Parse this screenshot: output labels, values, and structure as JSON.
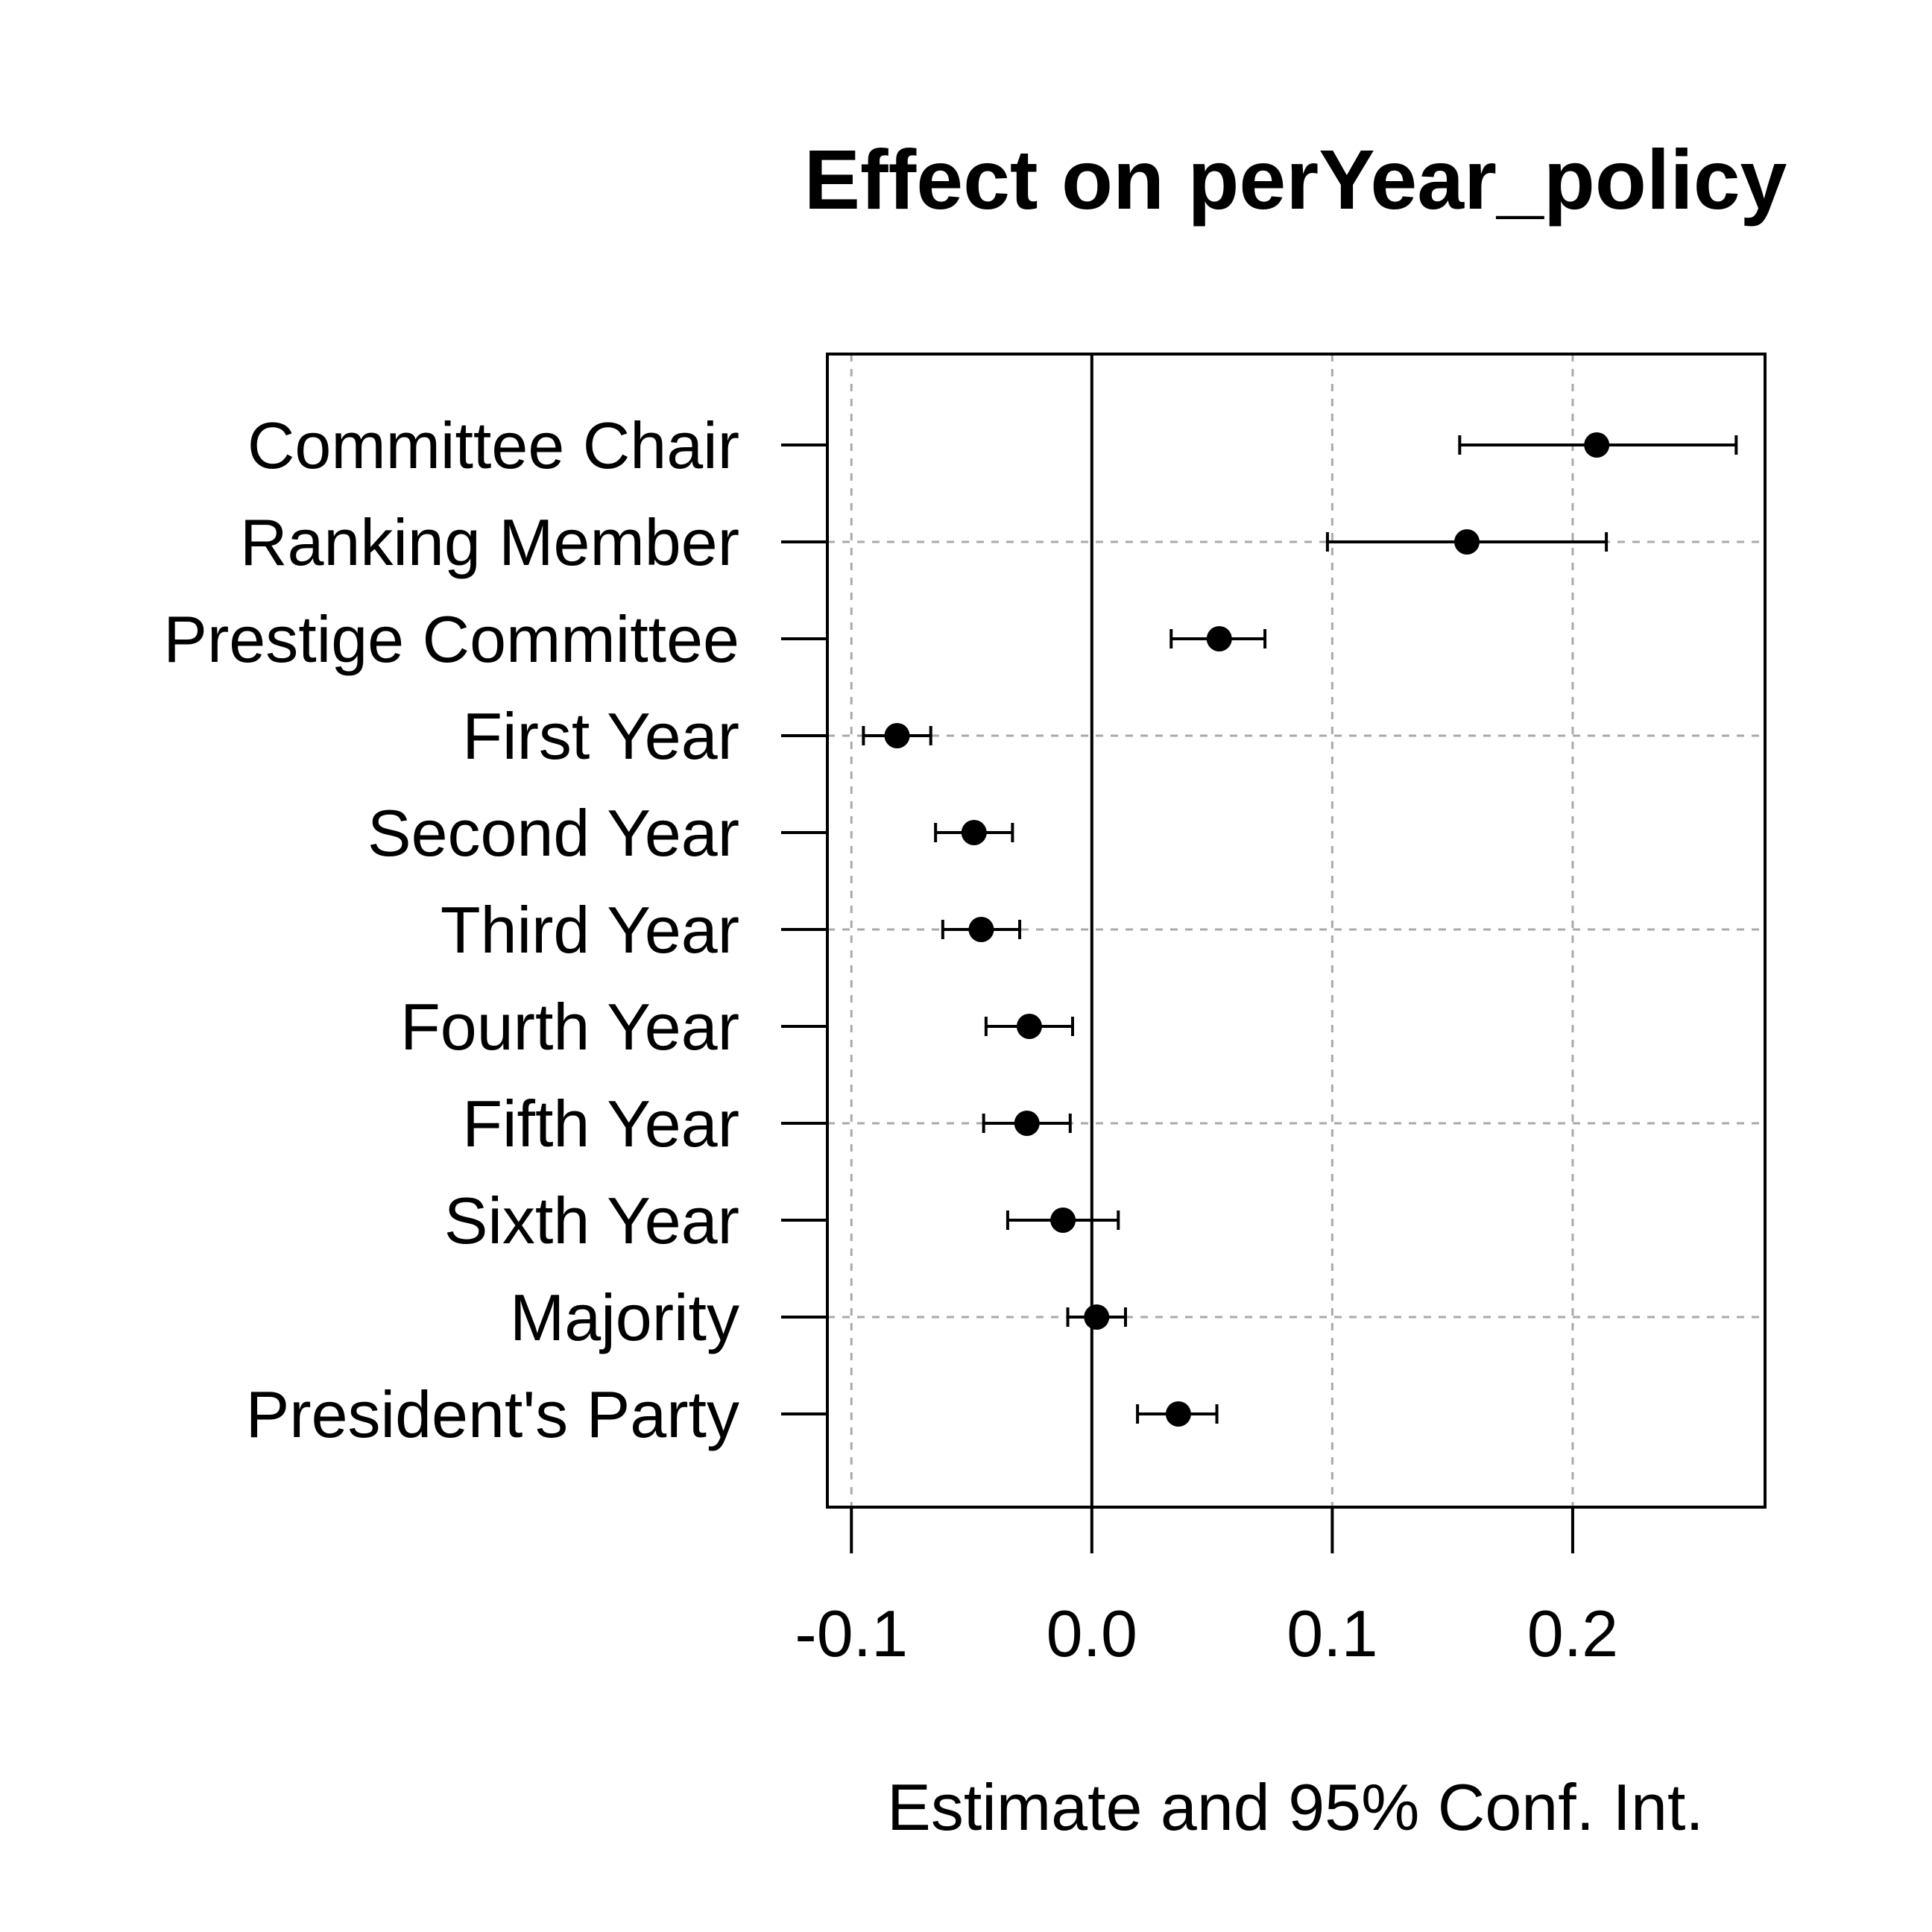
{
  "chart_data": {
    "type": "scatter",
    "subtype": "coefficient-plot",
    "title": "Effect on perYear_policy",
    "xlabel": "Estimate and 95% Conf. Int.",
    "ylabel": "",
    "xlim": [
      -0.11,
      0.28
    ],
    "x_ticks": [
      -0.1,
      0.0,
      0.1,
      0.2
    ],
    "x_tick_labels": [
      "-0.1",
      "0.0",
      "0.1",
      "0.2"
    ],
    "reference_line": 0,
    "grid": true,
    "color": "#000000",
    "grid_color": "#aaaaaa",
    "categories": [
      "Committee Chair",
      "Ranking Member",
      "Prestige Committee",
      "First Year",
      "Second Year",
      "Third Year",
      "Fourth Year",
      "Fifth Year",
      "Sixth Year",
      "Majority",
      "President's Party"
    ],
    "estimates": [
      0.21,
      0.156,
      0.053,
      -0.081,
      -0.049,
      -0.046,
      -0.026,
      -0.027,
      -0.012,
      0.002,
      0.036
    ],
    "lower": [
      0.153,
      0.098,
      0.033,
      -0.095,
      -0.065,
      -0.062,
      -0.044,
      -0.045,
      -0.035,
      -0.01,
      0.019
    ],
    "upper": [
      0.268,
      0.214,
      0.072,
      -0.067,
      -0.033,
      -0.03,
      -0.008,
      -0.009,
      0.011,
      0.014,
      0.052
    ]
  }
}
